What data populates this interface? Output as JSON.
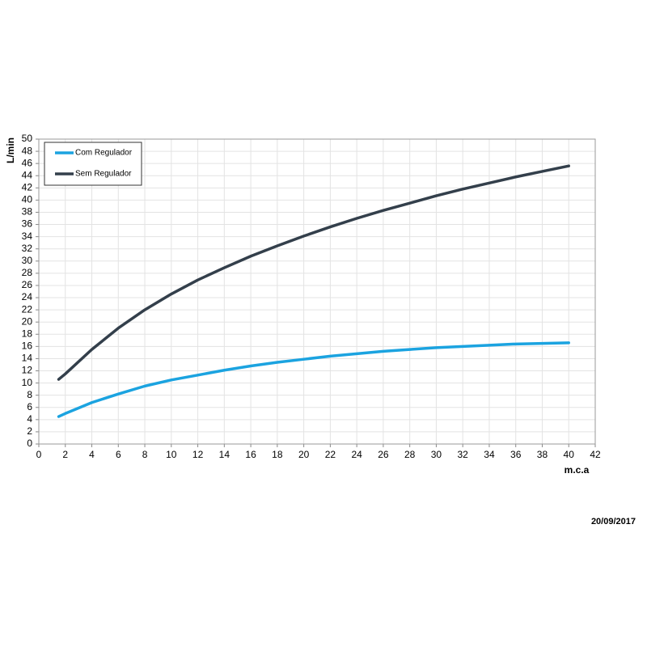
{
  "chart_data": {
    "type": "line",
    "x_label": "m.c.a",
    "y_label": "L/min",
    "date": "20/09/2017",
    "x": [
      1.5,
      2,
      4,
      6,
      8,
      10,
      12,
      14,
      16,
      18,
      20,
      22,
      24,
      26,
      28,
      30,
      32,
      34,
      36,
      38,
      40
    ],
    "series": [
      {
        "name": "Com Regulador",
        "color": "#1ba3e0",
        "values": [
          4.5,
          5.0,
          6.8,
          8.2,
          9.5,
          10.5,
          11.3,
          12.1,
          12.8,
          13.4,
          13.9,
          14.4,
          14.8,
          15.2,
          15.5,
          15.8,
          16.0,
          16.2,
          16.4,
          16.5,
          16.6
        ]
      },
      {
        "name": "Sem Regulador",
        "color": "#333f4b",
        "values": [
          10.6,
          11.5,
          15.5,
          19.0,
          22.0,
          24.6,
          26.9,
          28.9,
          30.8,
          32.5,
          34.1,
          35.6,
          37.0,
          38.3,
          39.5,
          40.7,
          41.8,
          42.8,
          43.8,
          44.7,
          45.6
        ]
      }
    ],
    "xlim": [
      0,
      42
    ],
    "xticks": [
      0,
      2,
      4,
      6,
      8,
      10,
      12,
      14,
      16,
      18,
      20,
      22,
      24,
      26,
      28,
      30,
      32,
      34,
      36,
      38,
      40,
      42
    ],
    "ylim": [
      0,
      50
    ],
    "yticks": [
      0,
      2,
      4,
      6,
      8,
      10,
      12,
      14,
      16,
      18,
      20,
      22,
      24,
      26,
      28,
      30,
      32,
      34,
      36,
      38,
      40,
      42,
      44,
      46,
      48,
      50
    ],
    "grid": true,
    "legend": "top-left"
  }
}
